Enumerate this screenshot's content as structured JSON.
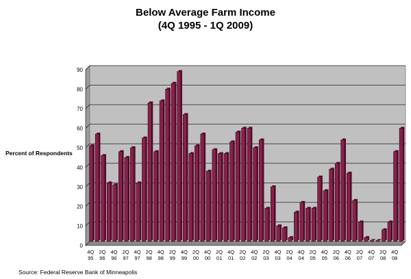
{
  "chart_data": {
    "type": "bar",
    "title": "Below Average Farm Income",
    "subtitle": "(4Q 1995 - 1Q 2009)",
    "ylabel": "Percent of Respondents",
    "xlabel": "",
    "source": "Source: Federal Reserve Bank of Minneapolis",
    "ylim": [
      0,
      90
    ],
    "yticks": [
      0,
      10,
      20,
      30,
      40,
      50,
      60,
      70,
      80,
      90
    ],
    "grid": true,
    "legend": "none",
    "colors": {
      "bar": "#8c1f4b",
      "bar_edge": "#000000",
      "plot_bg": "#c0c0c0",
      "grid": "#000000"
    },
    "x_tick_labels": [
      {
        "index": 0,
        "q": "4Q",
        "y": "95"
      },
      {
        "index": 2,
        "q": "2Q",
        "y": "96"
      },
      {
        "index": 4,
        "q": "4Q",
        "y": "96"
      },
      {
        "index": 6,
        "q": "2Q",
        "y": "97"
      },
      {
        "index": 8,
        "q": "4Q",
        "y": "97"
      },
      {
        "index": 10,
        "q": "2Q",
        "y": "98"
      },
      {
        "index": 12,
        "q": "4Q",
        "y": "98"
      },
      {
        "index": 14,
        "q": "2Q",
        "y": "99"
      },
      {
        "index": 16,
        "q": "4Q",
        "y": "99"
      },
      {
        "index": 18,
        "q": "2Q",
        "y": "00"
      },
      {
        "index": 20,
        "q": "4Q",
        "y": "00"
      },
      {
        "index": 22,
        "q": "2Q",
        "y": "01"
      },
      {
        "index": 24,
        "q": "4Q",
        "y": "01"
      },
      {
        "index": 26,
        "q": "2Q",
        "y": "02"
      },
      {
        "index": 28,
        "q": "4Q",
        "y": "02"
      },
      {
        "index": 30,
        "q": "2Q",
        "y": "03"
      },
      {
        "index": 32,
        "q": "4Q",
        "y": "03"
      },
      {
        "index": 34,
        "q": "2Q",
        "y": "04"
      },
      {
        "index": 36,
        "q": "4Q",
        "y": "04"
      },
      {
        "index": 38,
        "q": "2Q",
        "y": "05"
      },
      {
        "index": 40,
        "q": "4Q",
        "y": "05"
      },
      {
        "index": 42,
        "q": "2Q",
        "y": "06"
      },
      {
        "index": 44,
        "q": "4Q",
        "y": "06"
      },
      {
        "index": 46,
        "q": "2Q",
        "y": "07"
      },
      {
        "index": 48,
        "q": "4Q",
        "y": "07"
      },
      {
        "index": 50,
        "q": "2Q",
        "y": "08"
      },
      {
        "index": 52,
        "q": "4Q",
        "y": "08"
      }
    ],
    "values": [
      49,
      55,
      44,
      30,
      29,
      46,
      43,
      48,
      30,
      53,
      71,
      46,
      72,
      78,
      81,
      87,
      65,
      45,
      49,
      55,
      36,
      47,
      45,
      45,
      51,
      56,
      58,
      58,
      48,
      52,
      17,
      28,
      8,
      7,
      2,
      15,
      20,
      17,
      17,
      33,
      26,
      37,
      40,
      52,
      35,
      21,
      10,
      2,
      0.5,
      0.5,
      6,
      10,
      46,
      58
    ]
  }
}
